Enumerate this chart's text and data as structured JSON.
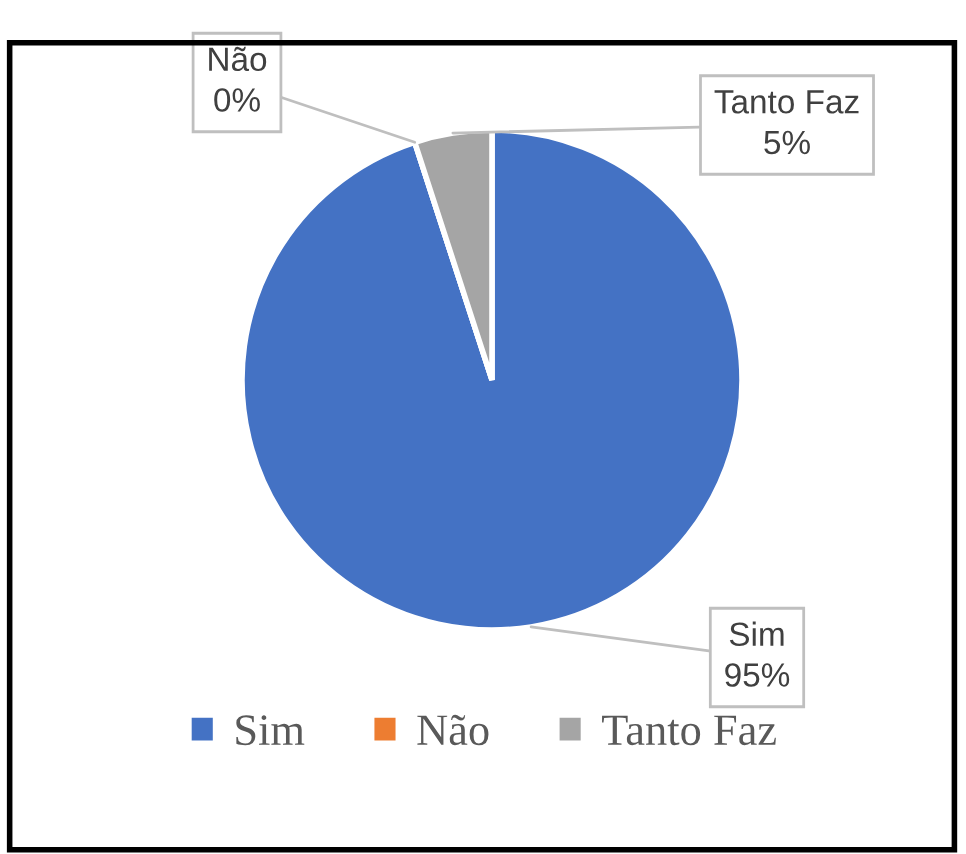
{
  "chart_data": {
    "type": "pie",
    "categories": [
      "Sim",
      "Não",
      "Tanto Faz"
    ],
    "values": [
      95,
      0,
      5
    ],
    "colors": [
      "#4472c4",
      "#ed7d31",
      "#a5a5a5"
    ],
    "value_labels": [
      "95%",
      "0%",
      "5%"
    ],
    "legend": "bottom"
  }
}
